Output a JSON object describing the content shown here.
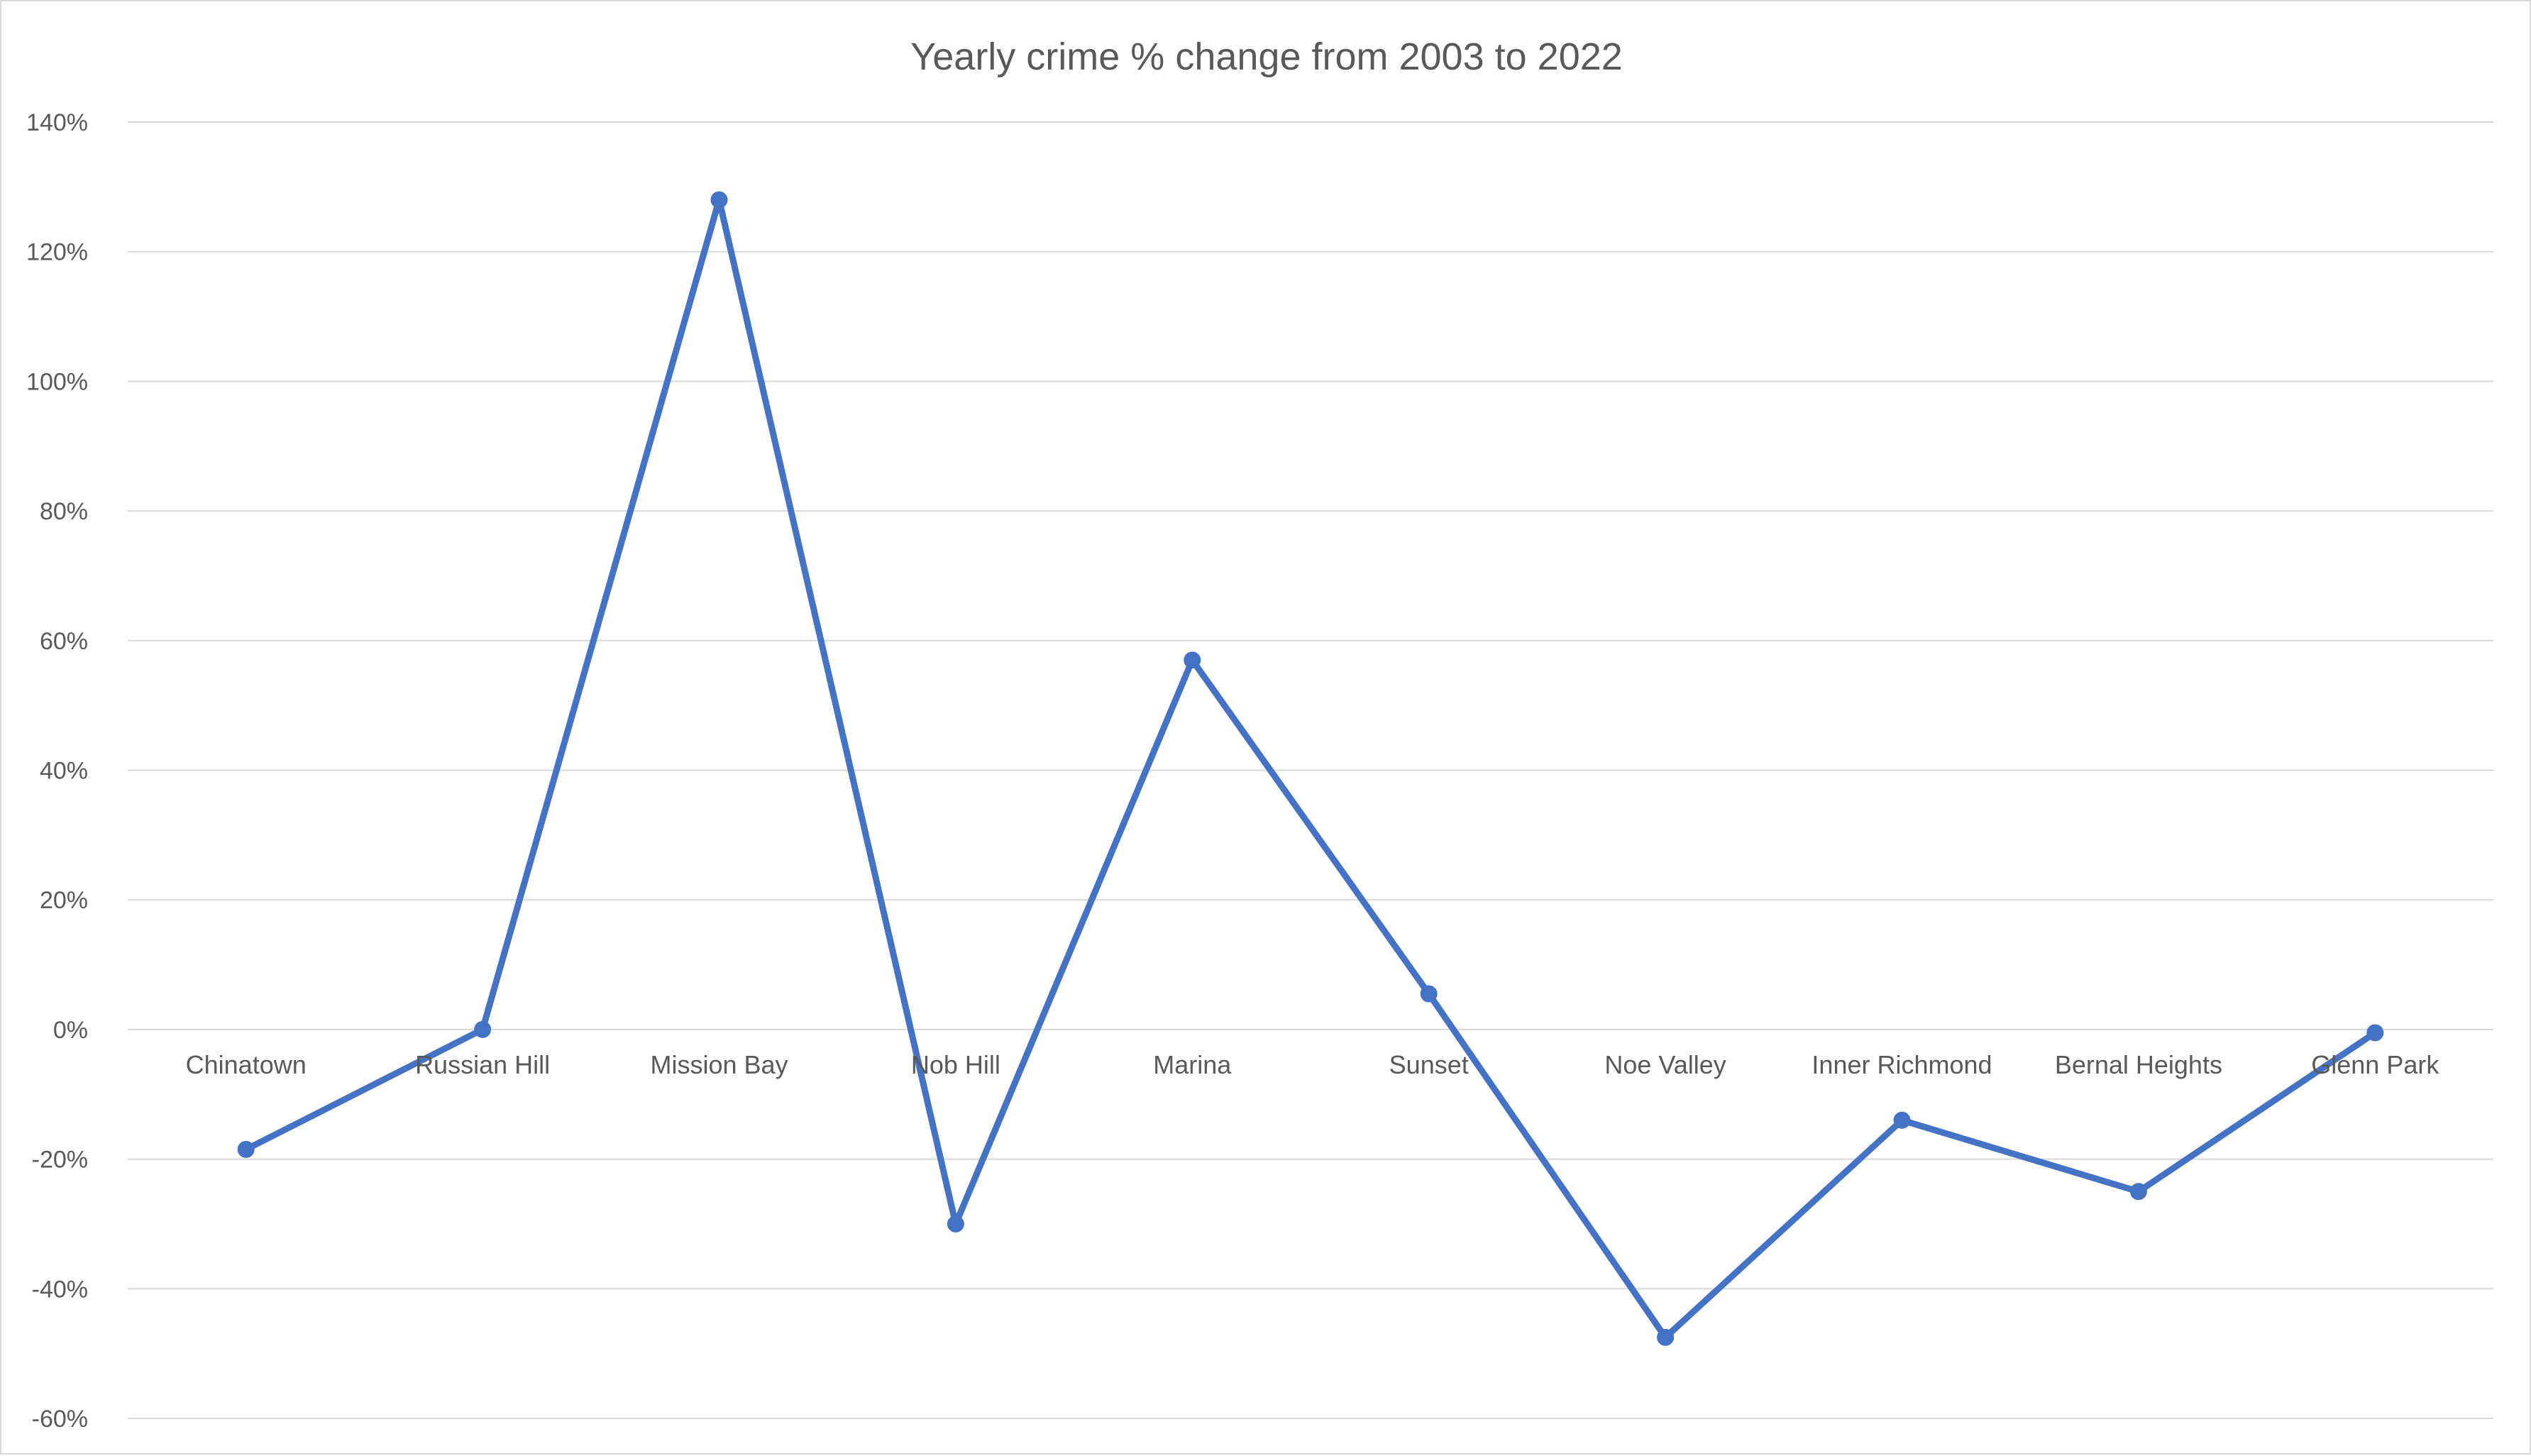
{
  "chart_data": {
    "type": "line",
    "title": "Yearly crime % change from 2003 to 2022",
    "categories": [
      "Chinatown",
      "Russian Hill",
      "Mission Bay",
      "Nob Hill",
      "Marina",
      "Sunset",
      "Noe Valley",
      "Inner Richmond",
      "Bernal Heights",
      "Glenn Park"
    ],
    "series": [
      {
        "values": [
          -18.5,
          0,
          128,
          -30,
          57,
          5.5,
          -47.5,
          -14,
          -25,
          -0.5
        ]
      }
    ],
    "y_ticks": [
      "140%",
      "120%",
      "100%",
      "80%",
      "60%",
      "40%",
      "20%",
      "0%",
      "-20%",
      "-40%",
      "-60%"
    ],
    "ylim": [
      -60,
      140
    ],
    "y_tick_step": 20,
    "y_format": "percent",
    "grid": true,
    "legend": "none",
    "line_color": "#4472c4",
    "grid_color": "#d9d9d9",
    "text_color": "#595959"
  }
}
